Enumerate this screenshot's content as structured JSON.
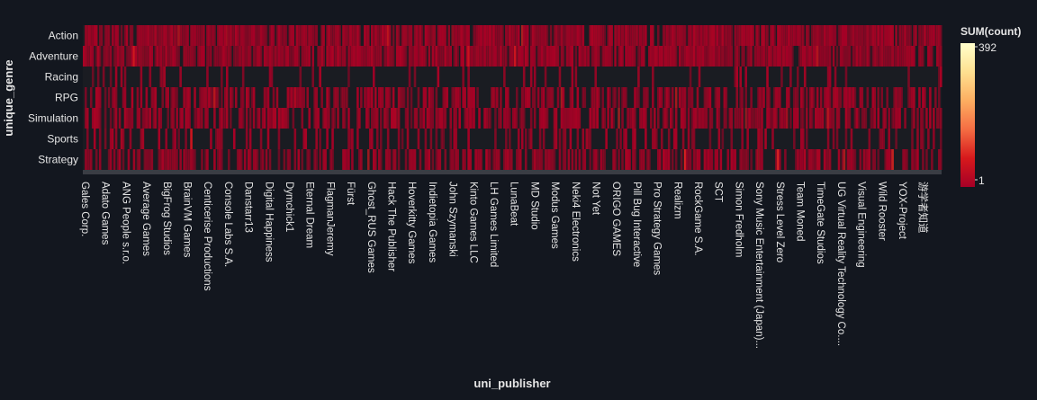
{
  "chart_data": {
    "type": "heatmap",
    "title": "",
    "xlabel": "uni_publisher",
    "ylabel": "unique_genre",
    "colorbar": {
      "title": "SUM(count)",
      "min_label": "1",
      "max_label": "392",
      "min": 1,
      "max": 392,
      "colors": [
        "#a50026",
        "#d7191c",
        "#f46d43",
        "#fdae61",
        "#fee090",
        "#ffffcc"
      ]
    },
    "y_categories": [
      "Action",
      "Adventure",
      "Racing",
      "RPG",
      "Simulation",
      "Sports",
      "Strategy"
    ],
    "x_tick_labels": [
      "Gales Corp.",
      "Adato Games",
      "ANG People s.r.o.",
      "Average Games",
      "BigFrog Studios",
      "BrainVM Games",
      "Centicerise Productions",
      "Console Labs S.A.",
      "Danstarr13",
      "Digital Happiness",
      "Dymchick1",
      "Eternal Dream",
      "FlagmanJeremy",
      "Fürst",
      "Ghost_RUS Games",
      "Hack The Publisher",
      "Hoverkitty Games",
      "Indietopia Games",
      "John Szymanski",
      "Kinto Games LLC",
      "LH Games Limited",
      "LunaBeat",
      "MD Studio",
      "Modus Games",
      "Neki4 Electronics",
      "Not Yet",
      "ORIGO GAMES",
      "Pill Bug Interactive",
      "Pro Strategy Games",
      "Realizm",
      "RockGame S.A.",
      "SCT",
      "Simon Fredholm",
      "Sony Music Entertainment (Japan)...",
      "Stress Level Zero",
      "Team Moned",
      "TimeGate Studios",
      "UG Virtual Reality Technology Co....",
      "Visual Engineering",
      "Wild Rooster",
      "YOX-Project",
      "游学者知道"
    ],
    "cell_value_range": [
      1,
      392
    ],
    "row_density": {
      "Action": 0.9,
      "Adventure": 0.88,
      "Racing": 0.15,
      "RPG": 0.55,
      "Simulation": 0.6,
      "Sports": 0.25,
      "Strategy": 0.55
    },
    "empty_cell_color": "#1a1c22",
    "background_color": "#13171f",
    "text_color": "#e6e6e6"
  }
}
